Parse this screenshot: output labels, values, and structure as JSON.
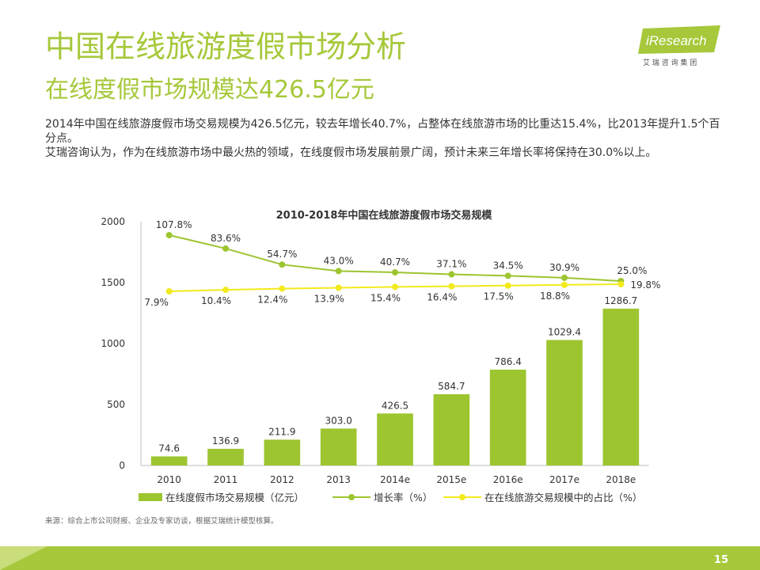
{
  "header": {
    "title": "中国在线旅游度假市场分析",
    "subtitle": "在线度假市场规模达426.5亿元"
  },
  "body": {
    "paragraph1": "2014年中国在线旅游度假市场交易规模为426.5亿元，较去年增长40.7%，占整体在线旅游市场的比重达15.4%，比2013年提升1.5个百分点。",
    "paragraph2": "艾瑞咨询认为，作为在线旅游市场中最火热的领域，在线度假市场发展前景广阔，预计未来三年增长率将保持在30.0%以上。"
  },
  "logo": {
    "brand": "iResearch",
    "tagline": "艾 瑞 咨 询 集 团"
  },
  "colors": {
    "accent_green": "#a6c83a",
    "bar_green": "#9dc530",
    "growth_line": "#9dc530",
    "share_line": "#f2ea1c"
  },
  "chart_data": {
    "type": "bar",
    "title": "2010-2018年中国在线旅游度假市场交易规模",
    "categories": [
      "2010",
      "2011",
      "2012",
      "2013",
      "2014e",
      "2015e",
      "2016e",
      "2017e",
      "2018e"
    ],
    "ylim": [
      0,
      2000
    ],
    "yticks": [
      "0",
      "500",
      "1000",
      "1500",
      "2000"
    ],
    "grid": false,
    "legend_position": "bottom",
    "series": [
      {
        "name": "在线度假市场交易规模（亿元）",
        "kind": "bar",
        "values": [
          74.6,
          136.9,
          211.9,
          303.0,
          426.5,
          584.7,
          786.4,
          1029.4,
          1286.7
        ],
        "labels": [
          "74.6",
          "136.9",
          "211.9",
          "303.0",
          "426.5",
          "584.7",
          "786.4",
          "1029.4",
          "1286.7"
        ]
      },
      {
        "name": "增长率（%）",
        "kind": "line",
        "values": [
          107.8,
          83.6,
          54.7,
          43.0,
          40.7,
          37.1,
          34.5,
          30.9,
          25.0
        ],
        "labels": [
          "107.8%",
          "83.6%",
          "54.7%",
          "43.0%",
          "40.7%",
          "37.1%",
          "34.5%",
          "30.9%",
          "25.0%"
        ]
      },
      {
        "name": "在在线旅游交易规模中的占比（%）",
        "kind": "line",
        "values": [
          7.9,
          10.4,
          12.4,
          13.9,
          15.4,
          16.4,
          17.5,
          18.8,
          19.8
        ],
        "labels": [
          "7.9%",
          "10.4%",
          "12.4%",
          "13.9%",
          "15.4%",
          "16.4%",
          "17.5%",
          "18.8%",
          "19.8%"
        ]
      }
    ]
  },
  "source": "来源：综合上市公司财报、企业及专家访谈，根据艾瑞统计模型核算。",
  "page_number": "15"
}
